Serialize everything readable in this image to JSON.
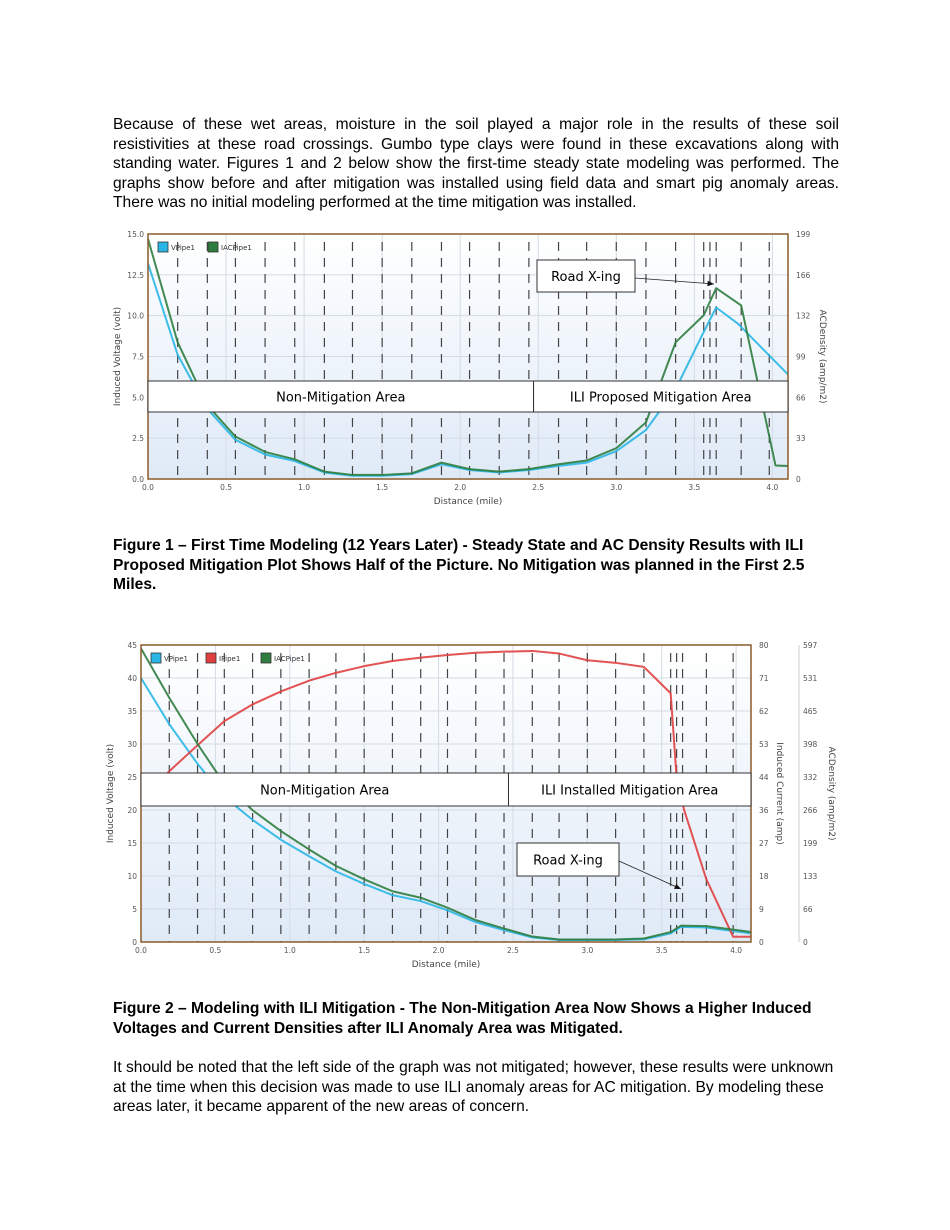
{
  "paragraphs": [
    "Because of these wet areas, moisture in the soil played a major role in the results of these soil resistivities at these road crossings.  Gumbo type clays were found in these excavations along with standing water.  Figures 1 and 2 below show the first-time steady state modeling was performed.  The graphs show before and after mitigation was installed using field data and smart pig anomaly areas.  There was no initial modeling performed at the time mitigation was installed.",
    "It should be noted that the left side of the graph was not mitigated; however, these results were unknown at the time when this decision was made to use ILI anomaly areas for AC mitigation. By modeling these areas later, it became apparent of the new areas of concern."
  ],
  "captions": {
    "figure1": "Figure 1 – First Time Modeling (12 Years Later) - Steady State and AC Density Results with ILI Proposed Mitigation Plot Shows Half of the Picture.  No Mitigation was planned in the First  2.5 Miles.",
    "figure2": "Figure 2 – Modeling with ILI Mitigation - The Non-Mitigation Area Now Shows a Higher Induced Voltages and Current Densities after ILI Anomaly Area was Mitigated."
  },
  "colors": {
    "vpipe": "#29b6e6",
    "ipipe": "#e04040",
    "iacpipe": "#2e7d3e",
    "frame": "#8b5a2b"
  },
  "chart_data": [
    {
      "type": "line",
      "xlabel": "Distance (mile)",
      "ylabel": "Induced Voltage (volt)",
      "y2label": "ACDensity (amp/m2)",
      "xlim": [
        0,
        4.1
      ],
      "ylim": [
        0,
        15
      ],
      "y2lim": [
        0,
        199
      ],
      "xticks": [
        "0.0",
        "0.5",
        "1.0",
        "1.5",
        "2.0",
        "2.5",
        "3.0",
        "3.5",
        "4.0"
      ],
      "yticks": [
        "0.0",
        "2.5",
        "5.0",
        "7.5",
        "10.0",
        "12.5",
        "15.0"
      ],
      "y2ticks": [
        "0",
        "33",
        "66",
        "99",
        "132",
        "166",
        "199"
      ],
      "grid": true,
      "legend": "top-left",
      "marker_x": [
        0.19,
        0.38,
        0.56,
        0.75,
        0.94,
        1.13,
        1.31,
        1.5,
        1.69,
        1.88,
        2.06,
        2.25,
        2.44,
        2.63,
        2.81,
        3.0,
        3.19,
        3.38,
        3.56,
        3.6,
        3.64,
        3.8,
        3.98
      ],
      "series": [
        {
          "name": "VPipe1",
          "axis": "left",
          "color": "#29b6e6",
          "x": [
            0,
            0.19,
            0.38,
            0.56,
            0.75,
            0.94,
            1.13,
            1.31,
            1.5,
            1.69,
            1.88,
            2.06,
            2.25,
            2.44,
            2.63,
            2.81,
            3.0,
            3.19,
            3.38,
            3.56,
            3.64,
            3.78,
            4.1
          ],
          "y": [
            13.2,
            7.6,
            4.3,
            2.4,
            1.5,
            1.1,
            0.4,
            0.2,
            0.2,
            0.3,
            0.9,
            0.55,
            0.4,
            0.55,
            0.8,
            1.0,
            1.7,
            3.0,
            5.5,
            9.0,
            10.5,
            9.5,
            6.4
          ]
        },
        {
          "name": "IACPipe1",
          "axis": "right",
          "color": "#2e7d3e",
          "x": [
            0,
            0.19,
            0.38,
            0.56,
            0.75,
            0.94,
            1.13,
            1.31,
            1.5,
            1.69,
            1.88,
            2.06,
            2.25,
            2.44,
            2.63,
            2.81,
            3.0,
            3.19,
            3.38,
            3.56,
            3.64,
            3.8,
            4.02,
            4.1
          ],
          "y": [
            195,
            111,
            60,
            34.5,
            22,
            16,
            6,
            3.3,
            3.3,
            4.6,
            13.3,
            8,
            6,
            8,
            12,
            15,
            25,
            46,
            111,
            133,
            155,
            141,
            11,
            10.6
          ]
        }
      ],
      "annotations": {
        "left_area": "Non-Mitigation Area",
        "right_area": "ILI Proposed Mitigation Area",
        "callout": "Road X-ing",
        "boundary_x": 2.47
      }
    },
    {
      "type": "line",
      "xlabel": "Distance (mile)",
      "ylabel": "Induced Voltage (volt)",
      "y2label": "Induced Current (amp)",
      "y3label": "ACDensity (amp/m2)",
      "xlim": [
        0,
        4.1
      ],
      "ylim": [
        0,
        45
      ],
      "y2lim": [
        0,
        80
      ],
      "y3lim": [
        0,
        597
      ],
      "xticks": [
        "0.0",
        "0.5",
        "1.0",
        "1.5",
        "2.0",
        "2.5",
        "3.0",
        "3.5",
        "4.0"
      ],
      "yticks": [
        "0",
        "5",
        "10",
        "15",
        "20",
        "25",
        "30",
        "35",
        "40",
        "45"
      ],
      "y2ticks": [
        "0",
        "9",
        "18",
        "27",
        "36",
        "44",
        "53",
        "62",
        "71",
        "80"
      ],
      "y3ticks": [
        "0",
        "66",
        "133",
        "199",
        "266",
        "332",
        "398",
        "465",
        "531",
        "597"
      ],
      "grid": true,
      "legend": "top-left",
      "marker_x": [
        0.19,
        0.38,
        0.56,
        0.75,
        0.94,
        1.13,
        1.31,
        1.5,
        1.69,
        1.88,
        2.06,
        2.25,
        2.44,
        2.63,
        2.81,
        3.0,
        3.19,
        3.38,
        3.56,
        3.6,
        3.64,
        3.8,
        3.98
      ],
      "series": [
        {
          "name": "VPipe1",
          "axis": "left",
          "color": "#29b6e6",
          "x": [
            0,
            0.19,
            0.38,
            0.56,
            0.75,
            0.94,
            1.13,
            1.31,
            1.5,
            1.69,
            1.88,
            2.06,
            2.25,
            2.44,
            2.63,
            2.81,
            3.0,
            3.19,
            3.38,
            3.56,
            3.63,
            3.8,
            4.1
          ],
          "y": [
            40,
            33,
            27,
            22,
            18.5,
            15.5,
            13,
            10.7,
            8.8,
            7.1,
            6.2,
            4.8,
            3.0,
            1.8,
            0.7,
            0.3,
            0.3,
            0.3,
            0.4,
            1.3,
            2.3,
            2.2,
            1.3
          ]
        },
        {
          "name": "IPipe1",
          "axis": "right",
          "color": "#e04040",
          "x": [
            0,
            0.19,
            0.38,
            0.56,
            0.75,
            0.94,
            1.13,
            1.31,
            1.5,
            1.69,
            1.88,
            2.06,
            2.25,
            2.44,
            2.63,
            2.81,
            3.0,
            3.19,
            3.38,
            3.56,
            3.6,
            3.65,
            3.8,
            3.98,
            4.1
          ],
          "y": [
            38,
            46,
            53,
            59.5,
            64,
            67.5,
            70.4,
            72.5,
            74.3,
            75.7,
            76.6,
            77.3,
            77.9,
            78.2,
            78.4,
            77.7,
            75.9,
            75.2,
            74.1,
            67,
            44.4,
            35.6,
            16.9,
            1.4,
            1.4
          ]
        },
        {
          "name": "IACPipe1",
          "axis": "right2",
          "color": "#2e7d3e",
          "x": [
            0,
            0.19,
            0.38,
            0.56,
            0.75,
            0.94,
            1.13,
            1.31,
            1.5,
            1.69,
            1.88,
            2.06,
            2.25,
            2.44,
            2.63,
            2.81,
            3.0,
            3.19,
            3.38,
            3.56,
            3.63,
            3.8,
            4.1
          ],
          "y": [
            590,
            491,
            398,
            318,
            265,
            223,
            186,
            153,
            126,
            102,
            89,
            69,
            44,
            27,
            11,
            5,
            5,
            5,
            7,
            20,
            33,
            32,
            20
          ]
        }
      ],
      "annotations": {
        "left_area": "Non-Mitigation Area",
        "right_area": "ILI Installed Mitigation Area",
        "callout": "Road X-ing",
        "boundary_x": 2.47
      }
    }
  ]
}
